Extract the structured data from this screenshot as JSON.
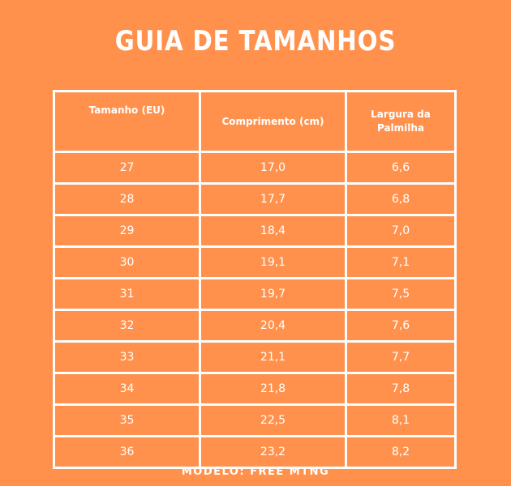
{
  "title": "GUIA DE TAMANHOS",
  "table": {
    "headers": [
      "Tamanho (EU)",
      "Comprimento (cm)",
      "Largura da Palmilha"
    ],
    "rows": [
      [
        "27",
        "17,0",
        "6,6"
      ],
      [
        "28",
        "17,7",
        "6,8"
      ],
      [
        "29",
        "18,4",
        "7,0"
      ],
      [
        "30",
        "19,1",
        "7,1"
      ],
      [
        "31",
        "19,7",
        "7,5"
      ],
      [
        "32",
        "20,4",
        "7,6"
      ],
      [
        "33",
        "21,1",
        "7,7"
      ],
      [
        "34",
        "21,8",
        "7,8"
      ],
      [
        "35",
        "22,5",
        "8,1"
      ],
      [
        "36",
        "23,2",
        "8,2"
      ]
    ]
  },
  "footer": "MODELO: FREE MTNG",
  "colors": {
    "background": "#FF914D",
    "text": "#FFFFFF",
    "border": "#FFFFFF"
  }
}
